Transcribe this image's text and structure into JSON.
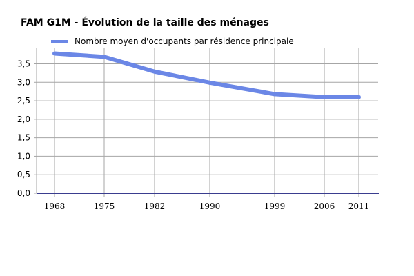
{
  "chart_data": {
    "type": "line",
    "title": "FAM G1M - Évolution de la taille des ménages",
    "xlabel": "",
    "ylabel": "",
    "x": [
      1968,
      1975,
      1982,
      1990,
      1999,
      2006,
      2011
    ],
    "x_tick_labels": [
      "1968",
      "1975",
      "1982",
      "1990",
      "1999",
      "2006",
      "2011"
    ],
    "y_tick_labels": [
      "0,0",
      "0,5",
      "1,0",
      "1,5",
      "2,0",
      "2,5",
      "3,0",
      "3,5"
    ],
    "series": [
      {
        "name": "Nombre moyen d'occupants par résidence principale",
        "values": [
          3.78,
          3.69,
          3.29,
          2.99,
          2.68,
          2.6,
          2.6
        ],
        "color": "#6b87e6"
      }
    ],
    "ylim": [
      0,
      3.92
    ],
    "grid": true,
    "legend_position": "top-left"
  },
  "colors": {
    "line": "#6b87e6",
    "grid": "#a6a6a6",
    "axis": "#3a3d8f"
  }
}
